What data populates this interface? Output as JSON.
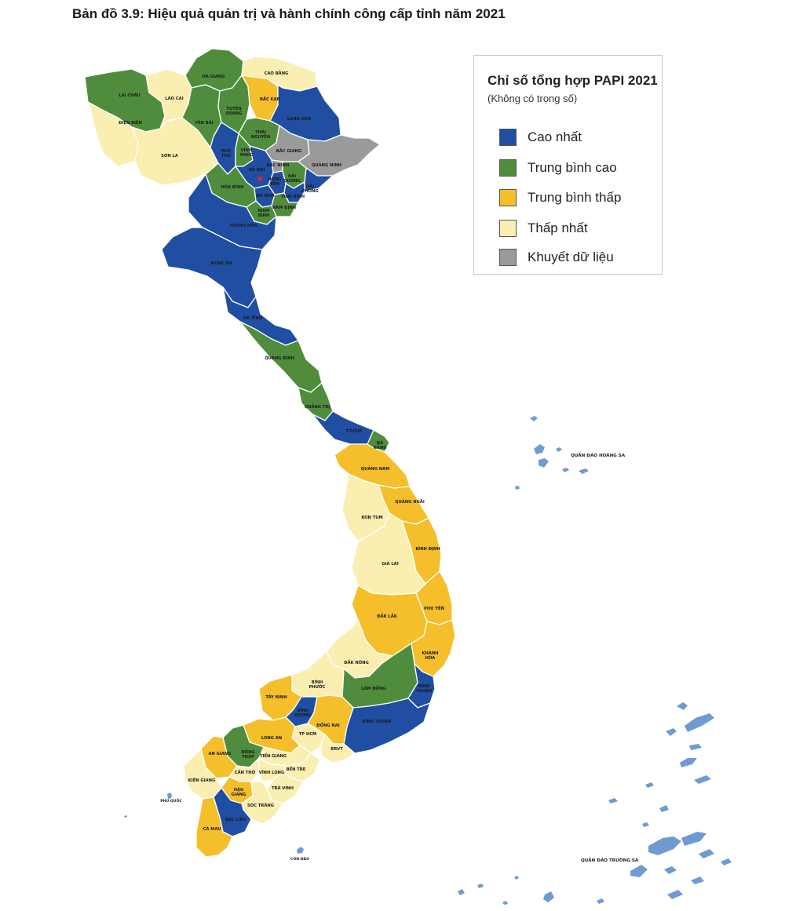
{
  "title": "Bản đồ 3.9: Hiệu quả quản trị và hành chính công cấp tỉnh năm 2021",
  "legend": {
    "title": "Chỉ số tổng hợp PAPI 2021",
    "subtitle": "(Không có trọng số)",
    "items": [
      {
        "label": "Cao nhất",
        "color": "#1f4ea3"
      },
      {
        "label": "Trung bình cao",
        "color": "#4f8d3d"
      },
      {
        "label": "Trung bình thấp",
        "color": "#f4bf2a"
      },
      {
        "label": "Thấp nhất",
        "color": "#fbeeb1"
      },
      {
        "label": "Khuyết dữ liệu",
        "color": "#9a9a9a"
      }
    ]
  },
  "provinces": [
    {
      "name": "LAI CHÂU",
      "category": "Trung bình cao"
    },
    {
      "name": "LÀO CAI",
      "category": "Thấp nhất"
    },
    {
      "name": "HÀ GIANG",
      "category": "Trung bình cao"
    },
    {
      "name": "CAO BẰNG",
      "category": "Thấp nhất"
    },
    {
      "name": "BẮC KẠN",
      "category": "Trung bình thấp"
    },
    {
      "name": "LẠNG SƠN",
      "category": "Cao nhất"
    },
    {
      "name": "ĐIỆN BIÊN",
      "category": "Thấp nhất"
    },
    {
      "name": "SƠN LA",
      "category": "Thấp nhất"
    },
    {
      "name": "YÊN BÁI",
      "category": "Trung bình cao"
    },
    {
      "name": "TUYÊN QUANG",
      "category": "Trung bình cao"
    },
    {
      "name": "THÁI NGUYÊN",
      "category": "Trung bình cao"
    },
    {
      "name": "PHÚ THỌ",
      "category": "Cao nhất"
    },
    {
      "name": "VĨNH PHÚC",
      "category": "Trung bình cao"
    },
    {
      "name": "BẮC GIANG",
      "category": "Khuyết dữ liệu"
    },
    {
      "name": "QUẢNG NINH",
      "category": "Khuyết dữ liệu"
    },
    {
      "name": "HÀ NỘI",
      "category": "Cao nhất"
    },
    {
      "name": "BẮC NINH",
      "category": "Khuyết dữ liệu"
    },
    {
      "name": "HẢI DƯƠNG",
      "category": "Trung bình cao"
    },
    {
      "name": "HẢI PHÒNG",
      "category": "Cao nhất"
    },
    {
      "name": "HƯNG YÊN",
      "category": "Cao nhất"
    },
    {
      "name": "HÒA BÌNH",
      "category": "Trung bình cao"
    },
    {
      "name": "HÀ NAM",
      "category": "Cao nhất"
    },
    {
      "name": "THÁI BÌNH",
      "category": "Cao nhất"
    },
    {
      "name": "NINH BÌNH",
      "category": "Trung bình cao"
    },
    {
      "name": "NAM ĐỊNH",
      "category": "Trung bình cao"
    },
    {
      "name": "THANH HÓA",
      "category": "Cao nhất"
    },
    {
      "name": "NGHỆ AN",
      "category": "Cao nhất"
    },
    {
      "name": "HÀ TĨNH",
      "category": "Cao nhất"
    },
    {
      "name": "QUẢNG BÌNH",
      "category": "Trung bình cao"
    },
    {
      "name": "QUẢNG TRỊ",
      "category": "Trung bình cao"
    },
    {
      "name": "TT-HUẾ",
      "category": "Cao nhất"
    },
    {
      "name": "ĐÀ NẴNG",
      "category": "Trung bình cao"
    },
    {
      "name": "QUẢNG NAM",
      "category": "Trung bình thấp"
    },
    {
      "name": "QUẢNG NGÃI",
      "category": "Trung bình thấp"
    },
    {
      "name": "KON TUM",
      "category": "Thấp nhất"
    },
    {
      "name": "BÌNH ĐỊNH",
      "category": "Trung bình thấp"
    },
    {
      "name": "GIA LAI",
      "category": "Thấp nhất"
    },
    {
      "name": "PHÚ YÊN",
      "category": "Trung bình thấp"
    },
    {
      "name": "ĐẮK LẮK",
      "category": "Trung bình thấp"
    },
    {
      "name": "KHÁNH HÒA",
      "category": "Trung bình thấp"
    },
    {
      "name": "ĐẮK NÔNG",
      "category": "Thấp nhất"
    },
    {
      "name": "LÂM ĐỒNG",
      "category": "Trung bình cao"
    },
    {
      "name": "NINH THUẬN",
      "category": "Cao nhất"
    },
    {
      "name": "BÌNH PHƯỚC",
      "category": "Thấp nhất"
    },
    {
      "name": "TÂY NINH",
      "category": "Trung bình thấp"
    },
    {
      "name": "BÌNH DƯƠNG",
      "category": "Cao nhất"
    },
    {
      "name": "ĐỒNG NAI",
      "category": "Trung bình thấp"
    },
    {
      "name": "BÌNH THUẬN",
      "category": "Cao nhất"
    },
    {
      "name": "TP HCM",
      "category": "Thấp nhất"
    },
    {
      "name": "BRVT",
      "category": "Thấp nhất"
    },
    {
      "name": "LONG AN",
      "category": "Trung bình thấp"
    },
    {
      "name": "ĐỒNG THÁP",
      "category": "Trung bình cao"
    },
    {
      "name": "AN GIANG",
      "category": "Trung bình thấp"
    },
    {
      "name": "TIỀN GIANG",
      "category": "Thấp nhất"
    },
    {
      "name": "KIÊN GIANG",
      "category": "Thấp nhất"
    },
    {
      "name": "CẦN THƠ",
      "category": "Thấp nhất"
    },
    {
      "name": "VĨNH LONG",
      "category": "Thấp nhất"
    },
    {
      "name": "BẾN TRE",
      "category": "Thấp nhất"
    },
    {
      "name": "HẬU GIANG",
      "category": "Trung bình thấp"
    },
    {
      "name": "TRÀ VINH",
      "category": "Thấp nhất"
    },
    {
      "name": "SÓC TRĂNG",
      "category": "Thấp nhất"
    },
    {
      "name": "BẠC LIÊU",
      "category": "Cao nhất"
    },
    {
      "name": "CÀ MAU",
      "category": "Trung bình thấp"
    },
    {
      "name": "PHÚ QUỐC",
      "category": ""
    },
    {
      "name": "CÔN ĐẢO",
      "category": ""
    }
  ],
  "archipelagos": {
    "hoang_sa": "QUẦN ĐẢO HOÀNG SA",
    "truong_sa": "QUẦN ĐẢO TRƯỜNG SA"
  }
}
